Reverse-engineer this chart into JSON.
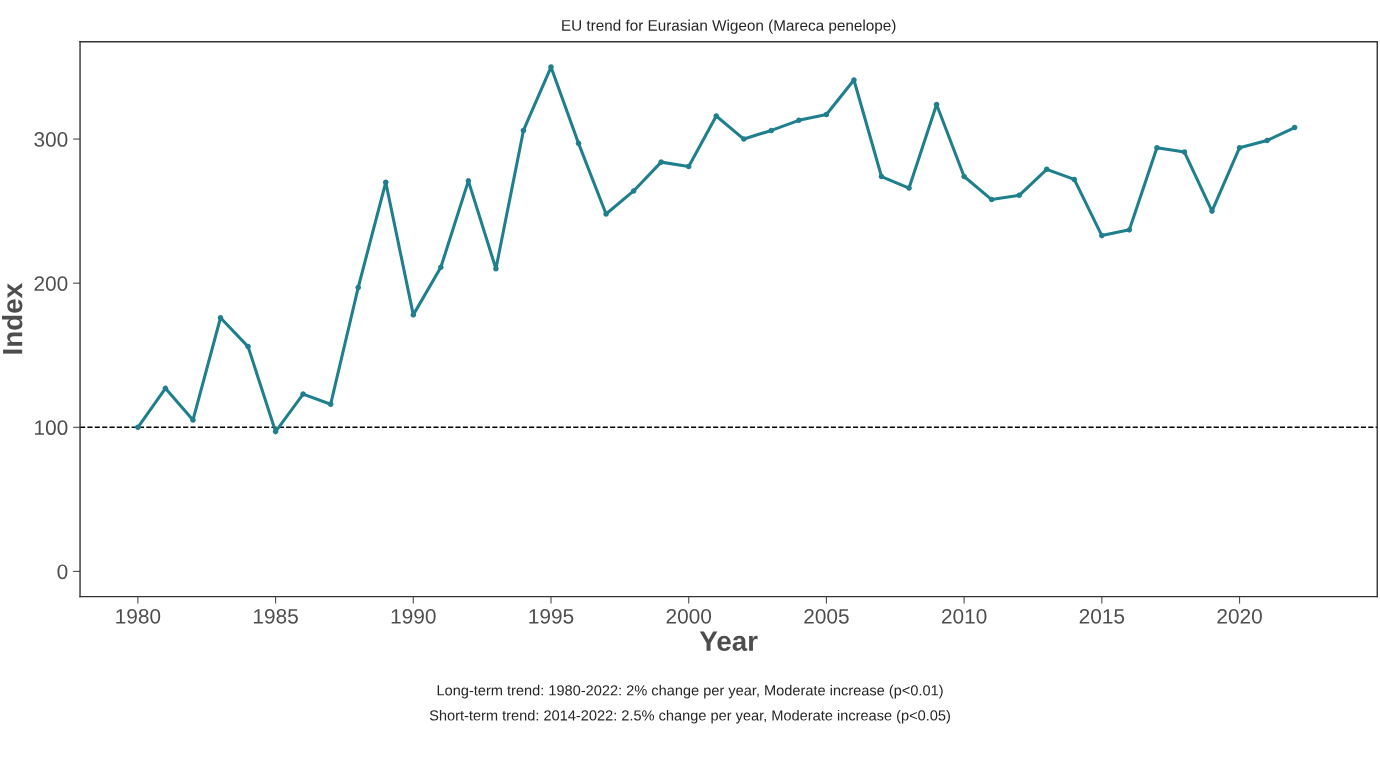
{
  "chart_data": {
    "type": "line",
    "title": "EU trend for Eurasian Wigeon (Mareca penelope)",
    "xlabel": "Year",
    "ylabel": "Index",
    "x": [
      1980,
      1981,
      1982,
      1983,
      1984,
      1985,
      1986,
      1987,
      1988,
      1989,
      1990,
      1991,
      1992,
      1993,
      1994,
      1995,
      1996,
      1997,
      1998,
      1999,
      2000,
      2001,
      2002,
      2003,
      2004,
      2005,
      2006,
      2007,
      2008,
      2009,
      2010,
      2011,
      2012,
      2013,
      2014,
      2015,
      2016,
      2017,
      2018,
      2019,
      2020,
      2021,
      2022
    ],
    "series": [
      {
        "color": "#1f7f8c",
        "values": [
          100,
          127,
          105,
          176,
          156,
          97,
          123,
          116,
          197,
          270,
          178,
          211,
          271,
          210,
          306,
          350,
          297,
          248,
          264,
          284,
          281,
          316,
          300,
          306,
          313,
          317,
          341,
          274,
          266,
          324,
          274,
          258,
          261,
          279,
          272,
          233,
          237,
          294,
          291,
          250,
          294,
          299,
          308
        ]
      }
    ],
    "xlim": [
      1977.9,
      2025
    ],
    "xticks": [
      1980,
      1985,
      1990,
      1995,
      2000,
      2005,
      2010,
      2015,
      2020
    ],
    "ylim": [
      -17.5,
      367.5
    ],
    "yticks": [
      0,
      100,
      200,
      300
    ],
    "ref_lines": [
      {
        "axis": "y",
        "value": 100,
        "color": "#000000",
        "line_style": "dashed"
      }
    ],
    "grid": false,
    "legend": false,
    "marker": "circle",
    "line_style": "solid",
    "annotations": [
      "Long-term trend: 1980-2022: 2% change per year, Moderate increase (p<0.01)",
      "Short-term trend: 2014-2022: 2.5% change per year, Moderate increase (p<0.05)"
    ]
  }
}
